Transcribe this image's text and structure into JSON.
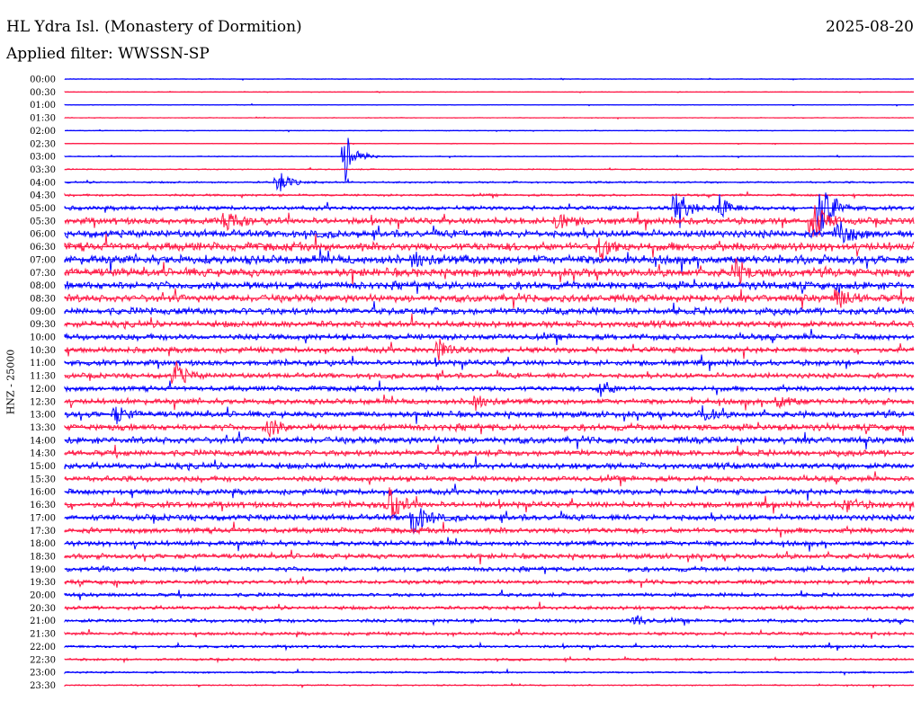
{
  "header": {
    "station": "HL Ydra Isl. (Monastery of Dormition)",
    "date": "2025-08-20",
    "filter": "Applied filter: WWSSN-SP"
  },
  "chart_data": {
    "type": "line",
    "ylabel": "HNZ - 25000",
    "colors": [
      "#0000ff",
      "#ff1744"
    ],
    "rows": [
      "00:00",
      "00:30",
      "01:00",
      "01:30",
      "02:00",
      "02:30",
      "03:00",
      "03:30",
      "04:00",
      "04:30",
      "05:00",
      "05:30",
      "06:00",
      "06:30",
      "07:00",
      "07:30",
      "08:00",
      "08:30",
      "09:00",
      "09:30",
      "10:00",
      "10:30",
      "11:00",
      "11:30",
      "12:00",
      "12:30",
      "13:00",
      "13:30",
      "14:00",
      "14:30",
      "15:00",
      "15:30",
      "16:00",
      "16:30",
      "17:00",
      "17:30",
      "18:00",
      "18:30",
      "19:00",
      "19:30",
      "20:00",
      "20:30",
      "21:00",
      "21:30",
      "22:00",
      "22:30",
      "23:00",
      "23:30"
    ],
    "noise_level": [
      0.3,
      0.3,
      0.3,
      0.3,
      0.3,
      0.3,
      0.4,
      0.5,
      0.8,
      1.0,
      1.8,
      2.8,
      3.2,
      3.6,
      3.8,
      3.6,
      3.4,
      3.2,
      3.0,
      2.8,
      2.6,
      2.4,
      2.4,
      2.2,
      2.2,
      2.4,
      2.6,
      2.8,
      2.8,
      2.6,
      2.6,
      2.4,
      2.4,
      2.6,
      2.6,
      2.4,
      2.2,
      2.2,
      2.0,
      1.8,
      1.6,
      1.6,
      1.6,
      1.4,
      1.2,
      1.0,
      0.8,
      0.6
    ],
    "events": [
      {
        "row": 8,
        "t": 0.25,
        "amp": 16
      },
      {
        "row": 6,
        "t": 0.33,
        "amp": 30
      },
      {
        "row": 11,
        "t": 0.19,
        "amp": 14
      },
      {
        "row": 11,
        "t": 0.58,
        "amp": 12
      },
      {
        "row": 10,
        "t": 0.72,
        "amp": 24
      },
      {
        "row": 10,
        "t": 0.77,
        "amp": 16
      },
      {
        "row": 10,
        "t": 0.89,
        "amp": 40
      },
      {
        "row": 11,
        "t": 0.88,
        "amp": 30
      },
      {
        "row": 12,
        "t": 0.91,
        "amp": 20
      },
      {
        "row": 13,
        "t": 0.63,
        "amp": 18
      },
      {
        "row": 14,
        "t": 0.41,
        "amp": 10
      },
      {
        "row": 15,
        "t": 0.79,
        "amp": 14
      },
      {
        "row": 17,
        "t": 0.91,
        "amp": 14
      },
      {
        "row": 21,
        "t": 0.44,
        "amp": 14
      },
      {
        "row": 23,
        "t": 0.13,
        "amp": 16
      },
      {
        "row": 24,
        "t": 0.63,
        "amp": 10
      },
      {
        "row": 25,
        "t": 0.48,
        "amp": 12
      },
      {
        "row": 25,
        "t": 0.84,
        "amp": 10
      },
      {
        "row": 26,
        "t": 0.06,
        "amp": 10
      },
      {
        "row": 26,
        "t": 0.75,
        "amp": 10
      },
      {
        "row": 27,
        "t": 0.24,
        "amp": 12
      },
      {
        "row": 33,
        "t": 0.38,
        "amp": 28
      },
      {
        "row": 34,
        "t": 0.41,
        "amp": 24
      },
      {
        "row": 33,
        "t": 0.92,
        "amp": 10
      },
      {
        "row": 42,
        "t": 0.67,
        "amp": 8
      }
    ]
  }
}
